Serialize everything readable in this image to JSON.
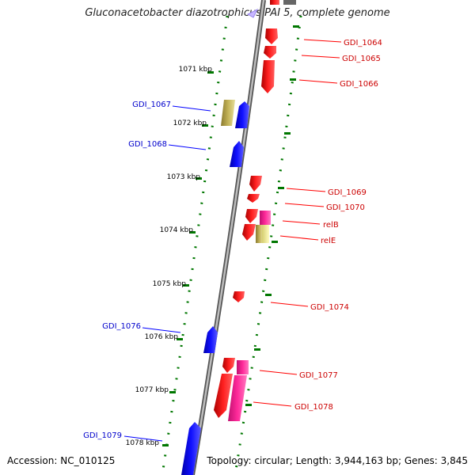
{
  "title": "Gluconacetobacter diazotrophicus PAI 5, complete genome",
  "footer": {
    "accession": "Accession: NC_010125",
    "summary": "Topology: circular; Length: 3,944,163 bp; Genes: 3,845"
  },
  "colors": {
    "plus_strand": "#ff0000",
    "minus_strand": "#0000ff",
    "rna_gene": "#ff1493",
    "pseudo_gene": "#b5a54a",
    "ticks": "#007700",
    "backbone": "#7a7a7a"
  },
  "kbp_ticks": [
    "1071 kbp",
    "1072 kbp",
    "1073 kbp",
    "1074 kbp",
    "1075 kbp",
    "1076 kbp",
    "1077 kbp",
    "1078 kbp"
  ],
  "genes_right": [
    {
      "label": "GDI_1064"
    },
    {
      "label": "GDI_1065"
    },
    {
      "label": "GDI_1066"
    },
    {
      "label": "GDI_1069"
    },
    {
      "label": "GDI_1070"
    },
    {
      "label": "relB"
    },
    {
      "label": "relE"
    },
    {
      "label": "GDI_1074"
    },
    {
      "label": "GDI_1077"
    },
    {
      "label": "GDI_1078"
    }
  ],
  "genes_left": [
    {
      "label": "GDI_1067"
    },
    {
      "label": "GDI_1068"
    },
    {
      "label": "GDI_1076"
    },
    {
      "label": "GDI_1079"
    }
  ]
}
